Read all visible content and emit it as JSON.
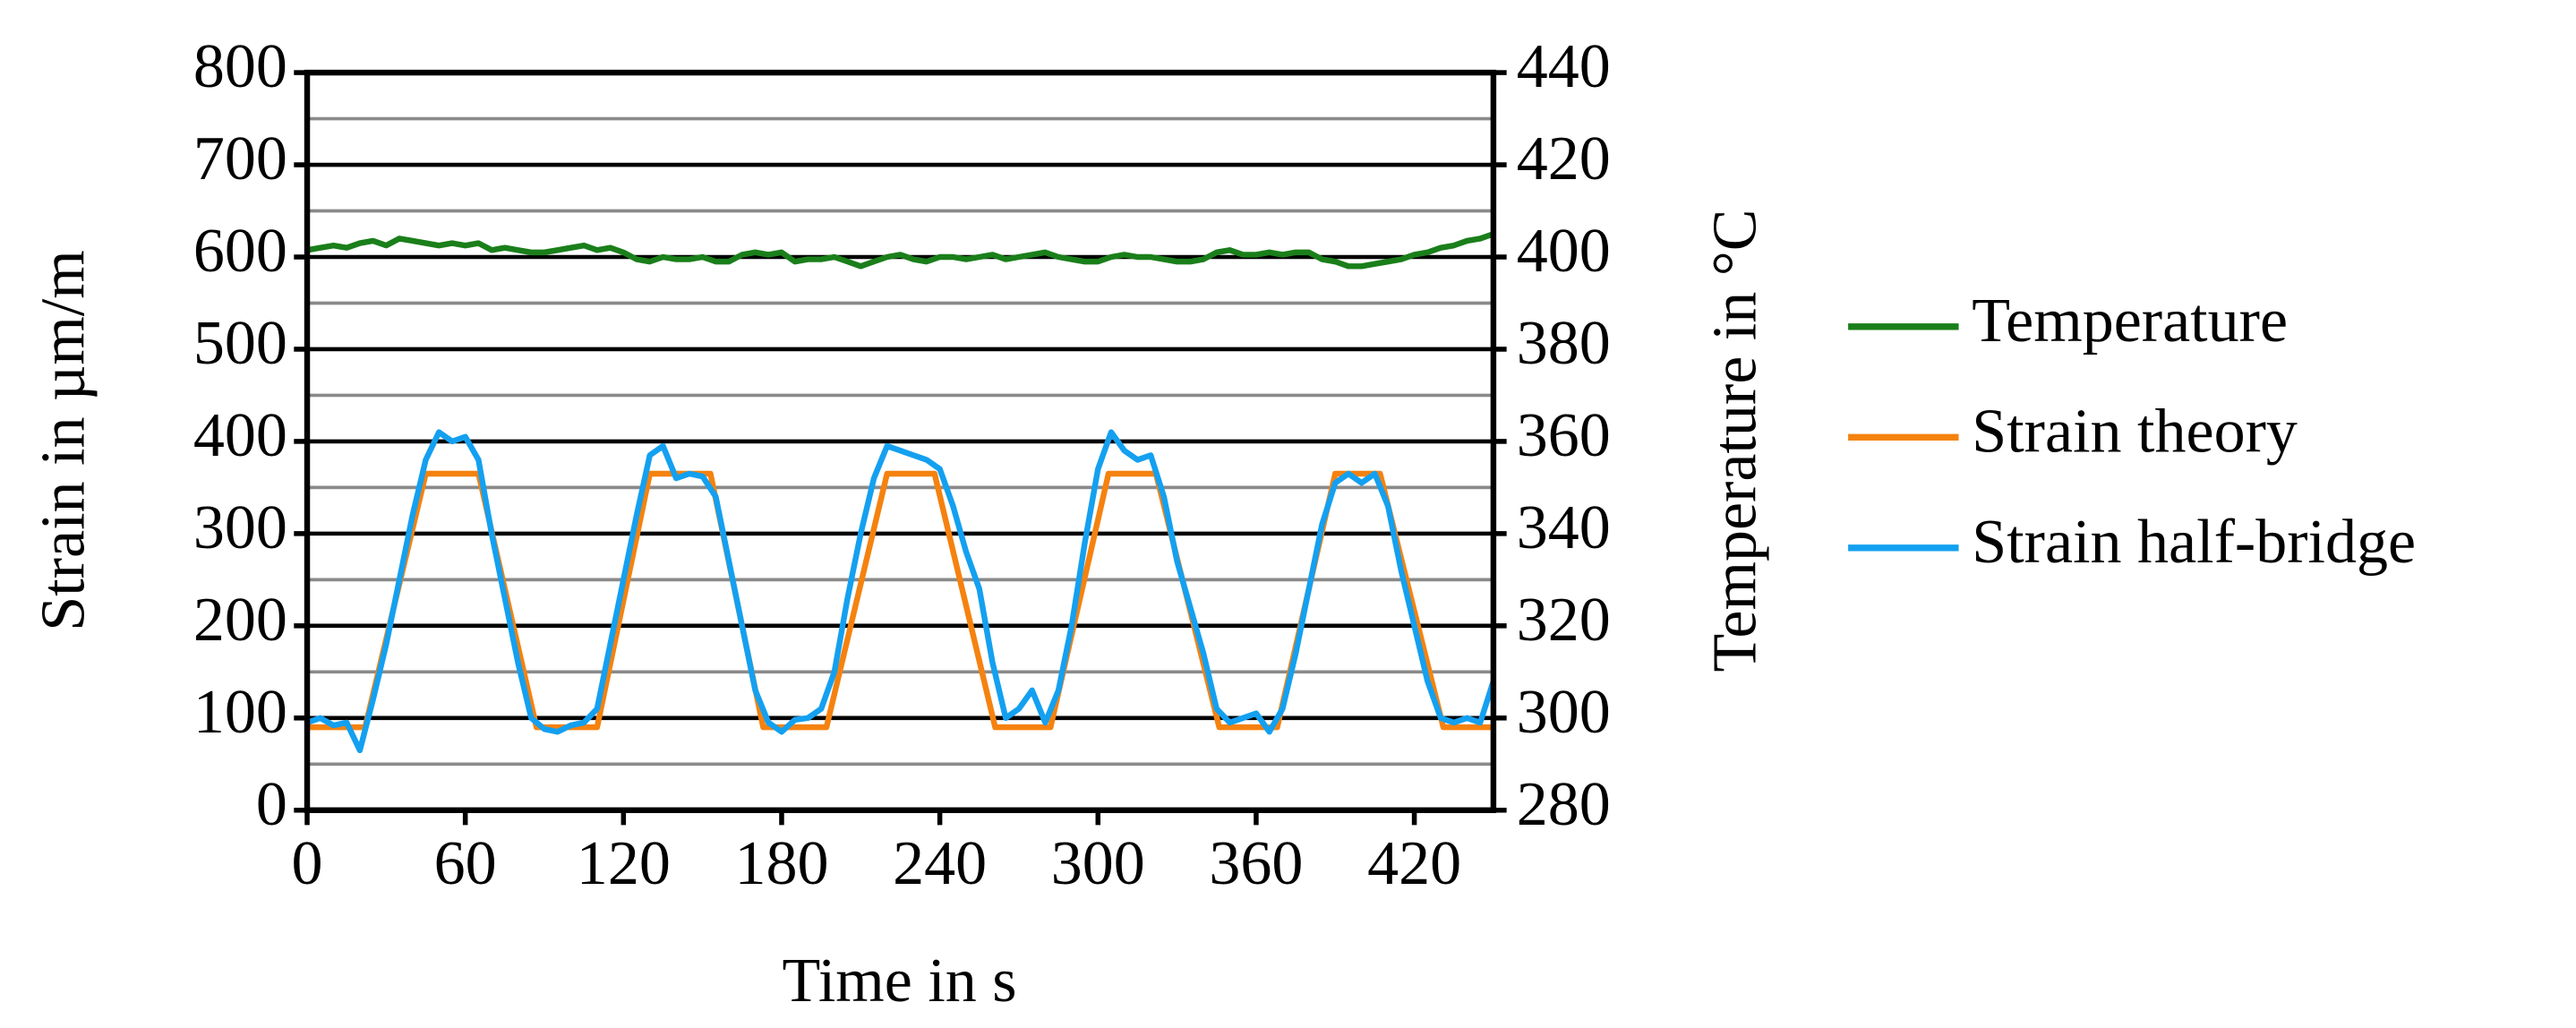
{
  "chart_data": {
    "type": "line",
    "xlabel": "Time in s",
    "ylabel": "Strain in µm/m",
    "y2label": "Temperature in °C",
    "xlim": [
      0,
      450
    ],
    "xticks": [
      0,
      60,
      120,
      180,
      240,
      300,
      360,
      420
    ],
    "ylim": [
      0,
      800
    ],
    "yticks": [
      0,
      100,
      200,
      300,
      400,
      500,
      600,
      700,
      800
    ],
    "minor_yticks": [
      50,
      150,
      250,
      350,
      450,
      550,
      650,
      750
    ],
    "y2lim": [
      280,
      440
    ],
    "y2ticks": [
      280,
      300,
      320,
      340,
      360,
      380,
      400,
      420,
      440
    ],
    "grid": true,
    "legend": "right",
    "series": [
      {
        "name": "Temperature",
        "color": "#1a7f1a",
        "axis": "y2",
        "x": [
          0,
          5,
          10,
          15,
          20,
          25,
          30,
          35,
          40,
          45,
          50,
          55,
          60,
          65,
          70,
          75,
          80,
          85,
          90,
          95,
          100,
          105,
          110,
          115,
          120,
          125,
          130,
          135,
          140,
          145,
          150,
          155,
          160,
          165,
          170,
          175,
          180,
          185,
          190,
          195,
          200,
          205,
          210,
          215,
          220,
          225,
          230,
          235,
          240,
          245,
          250,
          255,
          260,
          265,
          270,
          275,
          280,
          285,
          290,
          295,
          300,
          305,
          310,
          315,
          320,
          325,
          330,
          335,
          340,
          345,
          350,
          355,
          360,
          365,
          370,
          375,
          380,
          385,
          390,
          395,
          400,
          405,
          410,
          415,
          420,
          425,
          430,
          435,
          440,
          445,
          450
        ],
        "values": [
          401.5,
          402,
          402.5,
          402,
          403,
          403.5,
          402.5,
          404,
          403.5,
          403,
          402.5,
          403,
          402.5,
          403,
          401.5,
          402,
          401.5,
          401,
          401,
          401.5,
          402,
          402.5,
          401.5,
          402,
          401,
          399.5,
          399,
          400,
          399.5,
          399.5,
          400,
          399,
          399,
          400.5,
          401,
          400.5,
          401,
          399,
          399.5,
          399.5,
          400,
          399,
          398,
          399,
          400,
          400.5,
          399.5,
          399,
          400,
          400,
          399.5,
          400,
          400.5,
          399.5,
          400,
          400.5,
          401,
          400,
          399.5,
          399,
          399,
          400,
          400.5,
          400,
          400,
          399.5,
          399,
          399,
          399.5,
          401,
          401.5,
          400.5,
          400.5,
          401,
          400.5,
          401,
          401,
          399.5,
          399,
          398,
          398,
          398.5,
          399,
          399.5,
          400.5,
          401,
          402,
          402.5,
          403.5,
          404,
          405
        ]
      },
      {
        "name": "Strain theory",
        "color": "#f5820f",
        "x": [
          0,
          22,
          45,
          65,
          87,
          110,
          130,
          153,
          173,
          197,
          220,
          238,
          261,
          282,
          304,
          322,
          346,
          368,
          390,
          407,
          431,
          450
        ],
        "values": [
          90,
          90,
          365,
          365,
          90,
          90,
          365,
          365,
          90,
          90,
          365,
          365,
          90,
          90,
          365,
          365,
          90,
          90,
          365,
          365,
          90,
          90
        ]
      },
      {
        "name": "Strain half-bridge",
        "color": "#14a0f0",
        "x": [
          0,
          5,
          10,
          15,
          20,
          25,
          30,
          35,
          40,
          45,
          50,
          55,
          60,
          65,
          70,
          75,
          80,
          85,
          90,
          95,
          100,
          105,
          110,
          115,
          120,
          125,
          130,
          135,
          140,
          145,
          150,
          155,
          160,
          165,
          170,
          175,
          180,
          185,
          190,
          195,
          200,
          205,
          210,
          215,
          220,
          225,
          230,
          235,
          240,
          245,
          250,
          255,
          260,
          265,
          270,
          275,
          280,
          285,
          290,
          295,
          300,
          305,
          310,
          315,
          320,
          325,
          330,
          335,
          340,
          345,
          350,
          355,
          360,
          365,
          370,
          375,
          380,
          385,
          390,
          395,
          400,
          405,
          410,
          415,
          420,
          425,
          430,
          435,
          440,
          445,
          450
        ],
        "values": [
          95,
          100,
          92,
          95,
          65,
          120,
          180,
          250,
          320,
          380,
          410,
          400,
          405,
          380,
          300,
          230,
          160,
          100,
          88,
          85,
          92,
          95,
          110,
          180,
          250,
          320,
          385,
          395,
          360,
          365,
          362,
          340,
          270,
          200,
          130,
          95,
          85,
          98,
          100,
          110,
          150,
          230,
          300,
          360,
          395,
          390,
          385,
          380,
          370,
          330,
          280,
          240,
          160,
          100,
          110,
          130,
          95,
          130,
          200,
          290,
          370,
          410,
          390,
          380,
          385,
          340,
          270,
          220,
          170,
          110,
          95,
          100,
          105,
          85,
          110,
          170,
          240,
          310,
          355,
          365,
          355,
          365,
          330,
          260,
          200,
          140,
          100,
          95,
          100,
          95,
          140
        ]
      }
    ]
  }
}
